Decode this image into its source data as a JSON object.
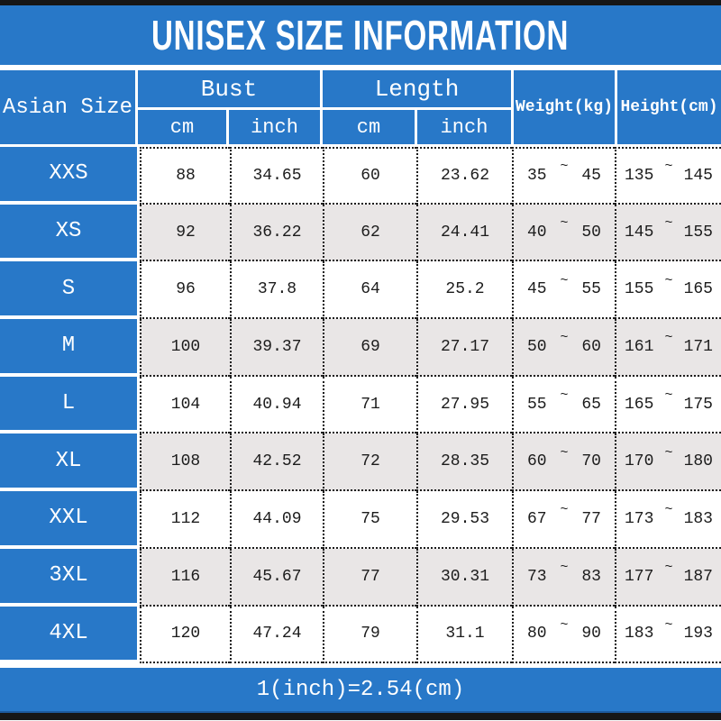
{
  "title": "UNISEX SIZE INFORMATION",
  "footer_note": "1(inch)=2.54(cm)",
  "colors": {
    "primary_blue": "#2878c8",
    "alt_row_gray": "#e9e6e6",
    "frame_black": "#161616",
    "header_text": "#ffffff",
    "data_text": "#1c1c1c"
  },
  "table": {
    "corner_header": "Asian Size",
    "range_separator": "~",
    "groups": [
      {
        "label": "Bust",
        "subs": [
          "cm",
          "inch"
        ]
      },
      {
        "label": "Length",
        "subs": [
          "cm",
          "inch"
        ]
      }
    ],
    "single_headers": [
      "Weight(kg)",
      "Height(cm)"
    ],
    "rows": [
      {
        "size": "XXS",
        "bust_cm": "88",
        "bust_inch": "34.65",
        "length_cm": "60",
        "length_inch": "23.62",
        "weight_min": "35",
        "weight_max": "45",
        "height_min": "135",
        "height_max": "145"
      },
      {
        "size": "XS",
        "bust_cm": "92",
        "bust_inch": "36.22",
        "length_cm": "62",
        "length_inch": "24.41",
        "weight_min": "40",
        "weight_max": "50",
        "height_min": "145",
        "height_max": "155"
      },
      {
        "size": "S",
        "bust_cm": "96",
        "bust_inch": "37.8",
        "length_cm": "64",
        "length_inch": "25.2",
        "weight_min": "45",
        "weight_max": "55",
        "height_min": "155",
        "height_max": "165"
      },
      {
        "size": "M",
        "bust_cm": "100",
        "bust_inch": "39.37",
        "length_cm": "69",
        "length_inch": "27.17",
        "weight_min": "50",
        "weight_max": "60",
        "height_min": "161",
        "height_max": "171"
      },
      {
        "size": "L",
        "bust_cm": "104",
        "bust_inch": "40.94",
        "length_cm": "71",
        "length_inch": "27.95",
        "weight_min": "55",
        "weight_max": "65",
        "height_min": "165",
        "height_max": "175"
      },
      {
        "size": "XL",
        "bust_cm": "108",
        "bust_inch": "42.52",
        "length_cm": "72",
        "length_inch": "28.35",
        "weight_min": "60",
        "weight_max": "70",
        "height_min": "170",
        "height_max": "180"
      },
      {
        "size": "XXL",
        "bust_cm": "112",
        "bust_inch": "44.09",
        "length_cm": "75",
        "length_inch": "29.53",
        "weight_min": "67",
        "weight_max": "77",
        "height_min": "173",
        "height_max": "183"
      },
      {
        "size": "3XL",
        "bust_cm": "116",
        "bust_inch": "45.67",
        "length_cm": "77",
        "length_inch": "30.31",
        "weight_min": "73",
        "weight_max": "83",
        "height_min": "177",
        "height_max": "187"
      },
      {
        "size": "4XL",
        "bust_cm": "120",
        "bust_inch": "47.24",
        "length_cm": "79",
        "length_inch": "31.1",
        "weight_min": "80",
        "weight_max": "90",
        "height_min": "183",
        "height_max": "193"
      }
    ]
  }
}
